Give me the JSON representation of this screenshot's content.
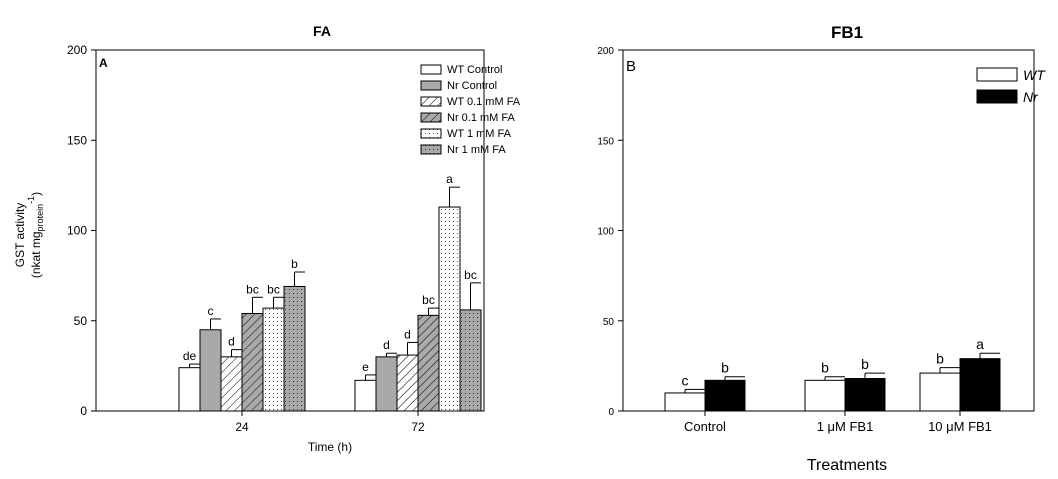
{
  "chart_data": [
    {
      "type": "bar",
      "title": "FA",
      "panel_label": "A",
      "xlabel": "Time (h)",
      "ylabel_line1": "GST activity",
      "ylabel_line2": "(nkat mg",
      "ylabel_sub": "protein",
      "ylabel_sup": "-1",
      "ylabel_close": ")",
      "ylim": [
        0,
        200
      ],
      "yticks": [
        0,
        50,
        100,
        150,
        200
      ],
      "categories": [
        "24",
        "72"
      ],
      "legend_position": "top-right",
      "grid": false,
      "series": [
        {
          "name": "WT Control",
          "fill": "white",
          "values": [
            24,
            17
          ],
          "errors": [
            2,
            3
          ],
          "letters": [
            "de",
            "e"
          ]
        },
        {
          "name": "Nr Control",
          "fill": "gray",
          "values": [
            45,
            30
          ],
          "errors": [
            6,
            2
          ],
          "letters": [
            "c",
            "d"
          ]
        },
        {
          "name": "WT 0.1 mM FA",
          "fill": "hatch-white",
          "values": [
            30,
            31
          ],
          "errors": [
            4,
            7
          ],
          "letters": [
            "d",
            "d"
          ]
        },
        {
          "name": "Nr 0.1 mM FA",
          "fill": "hatch-gray",
          "values": [
            54,
            53
          ],
          "errors": [
            9,
            4
          ],
          "letters": [
            "bc",
            "bc"
          ]
        },
        {
          "name": "WT 1 mM FA",
          "fill": "dots-white",
          "values": [
            57,
            113
          ],
          "errors": [
            6,
            11
          ],
          "letters": [
            "bc",
            "a"
          ]
        },
        {
          "name": "Nr 1 mM FA",
          "fill": "dots-gray",
          "values": [
            69,
            56
          ],
          "errors": [
            8,
            15
          ],
          "letters": [
            "b",
            "bc"
          ]
        }
      ]
    },
    {
      "type": "bar",
      "title": "FB1",
      "panel_label": "B",
      "xlabel": "Treatments",
      "ylim": [
        0,
        200
      ],
      "yticks": [
        0,
        50,
        100,
        150,
        200
      ],
      "categories": [
        "Control",
        "1 μM FB1",
        "10 μM FB1"
      ],
      "legend_position": "top-right",
      "grid": false,
      "series": [
        {
          "name": "WT",
          "fill": "white",
          "values": [
            10,
            17,
            21
          ],
          "errors": [
            2,
            2,
            3
          ],
          "letters": [
            "c",
            "b",
            "b"
          ]
        },
        {
          "name": "Nr",
          "fill": "black",
          "values": [
            17,
            18,
            29
          ],
          "errors": [
            2,
            3,
            3
          ],
          "letters": [
            "b",
            "b",
            "a"
          ]
        }
      ]
    }
  ]
}
